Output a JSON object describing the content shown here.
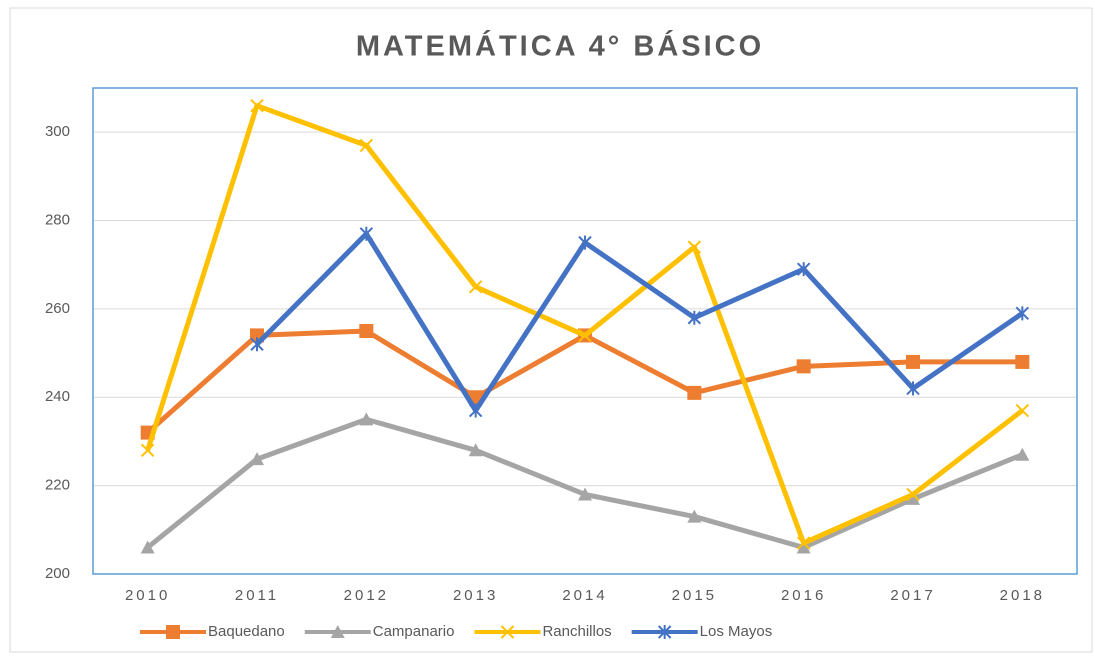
{
  "chart_data": {
    "type": "line",
    "title": "MATEMÁTICA 4° BÁSICO",
    "categories": [
      "2010",
      "2011",
      "2012",
      "2013",
      "2014",
      "2015",
      "2016",
      "2017",
      "2018"
    ],
    "series": [
      {
        "name": "Baquedano",
        "color": "#ed7d31",
        "marker": "square",
        "values": [
          232,
          254,
          255,
          240,
          254,
          241,
          247,
          248,
          248
        ]
      },
      {
        "name": "Campanario",
        "color": "#a5a5a5",
        "marker": "triangle",
        "values": [
          206,
          226,
          235,
          228,
          218,
          213,
          206,
          217,
          227
        ]
      },
      {
        "name": "Ranchillos",
        "color": "#ffc000",
        "marker": "x",
        "values": [
          228,
          306,
          297,
          265,
          254,
          274,
          207,
          218,
          237
        ]
      },
      {
        "name": "Los Mayos",
        "color": "#4472c4",
        "marker": "star",
        "values": [
          null,
          252,
          277,
          237,
          275,
          258,
          269,
          242,
          259
        ]
      }
    ],
    "ylim": [
      200,
      310
    ],
    "yticks": [
      200,
      220,
      240,
      260,
      280,
      300
    ],
    "grid": true,
    "legend": "bottom"
  }
}
